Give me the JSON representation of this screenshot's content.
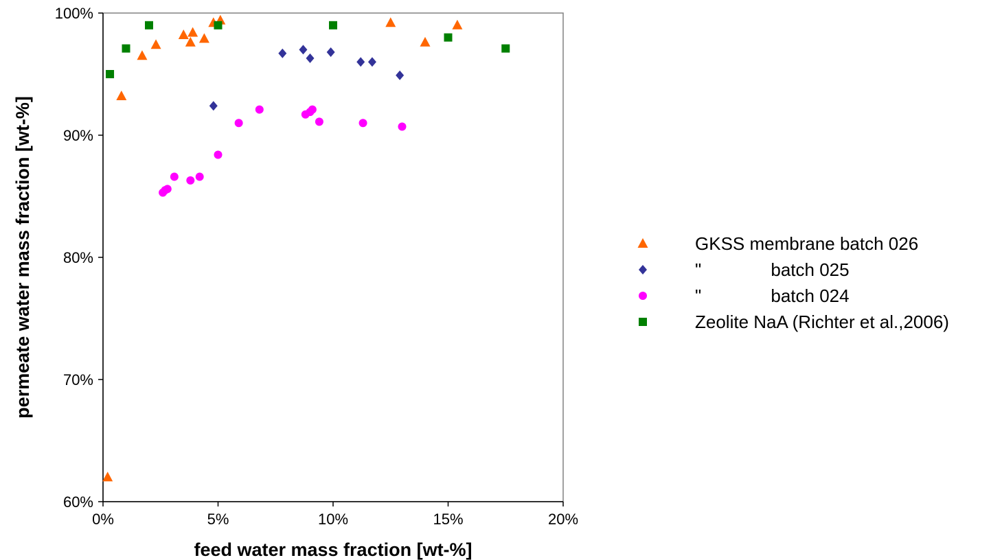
{
  "chart_data": {
    "type": "scatter",
    "title": "",
    "xlabel": "feed water mass fraction [wt-%]",
    "ylabel": "permeate water mass fraction [wt-%]",
    "xlim": [
      0,
      20
    ],
    "ylim": [
      60,
      100
    ],
    "x_ticks": [
      "0%",
      "5%",
      "10%",
      "15%",
      "20%"
    ],
    "x_tick_values": [
      0,
      5,
      10,
      15,
      20
    ],
    "y_ticks": [
      "60%",
      "70%",
      "80%",
      "90%",
      "100%"
    ],
    "y_tick_values": [
      60,
      70,
      80,
      90,
      100
    ],
    "grid": false,
    "legend_position": "right",
    "series": [
      {
        "name": "GKSS membrane batch 026",
        "legend_label": "GKSS membrane batch 026",
        "marker": "triangle",
        "color": "#ff6600",
        "points": [
          [
            0.2,
            62.0
          ],
          [
            0.8,
            93.2
          ],
          [
            1.7,
            96.5
          ],
          [
            2.3,
            97.4
          ],
          [
            3.5,
            98.2
          ],
          [
            3.8,
            97.6
          ],
          [
            3.9,
            98.4
          ],
          [
            4.4,
            97.9
          ],
          [
            4.8,
            99.2
          ],
          [
            5.1,
            99.4
          ],
          [
            12.5,
            99.2
          ],
          [
            14.0,
            97.6
          ],
          [
            15.4,
            99.0
          ]
        ]
      },
      {
        "name": "GKSS membrane batch 025",
        "legend_label": "\"              batch 025",
        "marker": "diamond",
        "color": "#333399",
        "points": [
          [
            4.8,
            92.4
          ],
          [
            7.8,
            96.7
          ],
          [
            8.7,
            97.0
          ],
          [
            9.0,
            96.3
          ],
          [
            9.9,
            96.8
          ],
          [
            11.2,
            96.0
          ],
          [
            11.7,
            96.0
          ],
          [
            12.9,
            94.9
          ]
        ]
      },
      {
        "name": "GKSS membrane batch 024",
        "legend_label": "\"              batch 024",
        "marker": "circle",
        "color": "#ff00ff",
        "points": [
          [
            2.6,
            85.3
          ],
          [
            2.7,
            85.5
          ],
          [
            2.8,
            85.6
          ],
          [
            3.1,
            86.6
          ],
          [
            3.8,
            86.3
          ],
          [
            4.2,
            86.6
          ],
          [
            5.0,
            88.4
          ],
          [
            5.9,
            91.0
          ],
          [
            6.8,
            92.1
          ],
          [
            8.8,
            91.7
          ],
          [
            9.0,
            91.9
          ],
          [
            9.1,
            92.1
          ],
          [
            9.4,
            91.1
          ],
          [
            11.3,
            91.0
          ],
          [
            13.0,
            90.7
          ]
        ]
      },
      {
        "name": "Zeolite NaA (Richter et al.,2006)",
        "legend_label": "Zeolite NaA (Richter et al.,2006)",
        "marker": "square",
        "color": "#008000",
        "points": [
          [
            0.3,
            95.0
          ],
          [
            1.0,
            97.1
          ],
          [
            2.0,
            99.0
          ],
          [
            5.0,
            99.0
          ],
          [
            10.0,
            99.0
          ],
          [
            15.0,
            98.0
          ],
          [
            17.5,
            97.1
          ]
        ]
      }
    ]
  }
}
